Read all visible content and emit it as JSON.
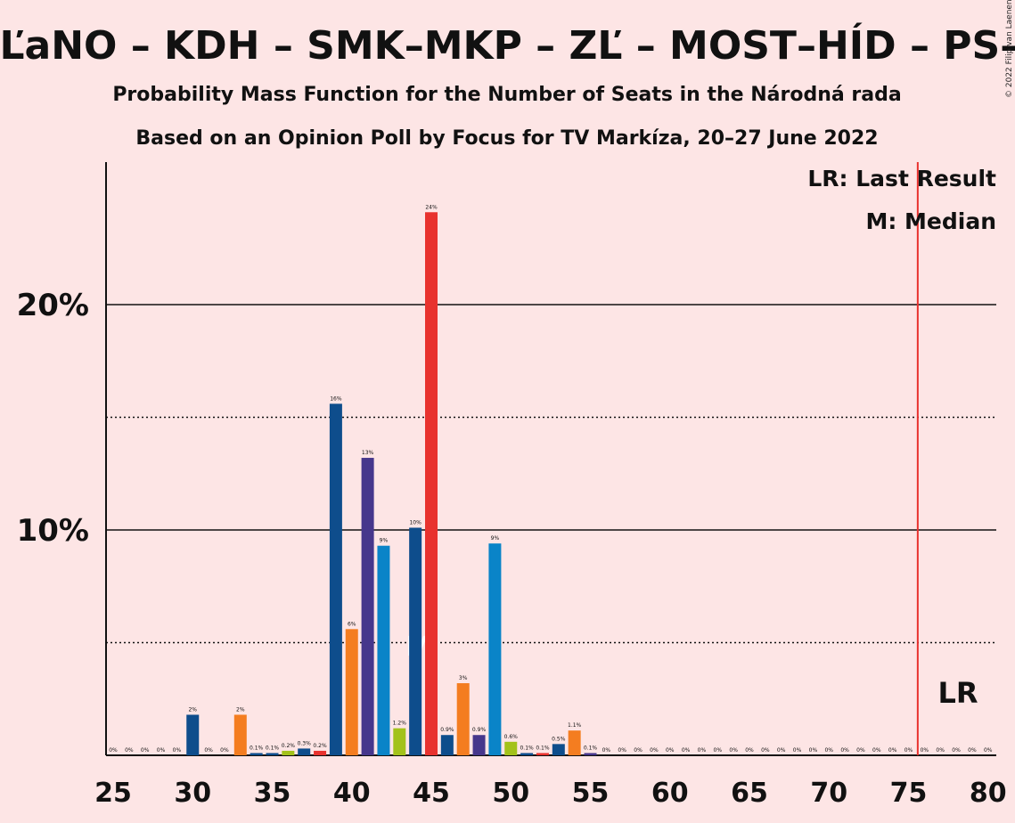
{
  "chart_data": {
    "type": "bar",
    "title": "OĽaNO – KDH – SMK–MKP – ZĽ – MOST–HÍD – PS–S",
    "subtitle": "Probability Mass Function for the Number of Seats in the Národná rada",
    "subtitle2": "Based on an Opinion Poll by Focus for TV Markíza, 20–27 June 2022",
    "copyright": "© 2022 Filip van Laenen",
    "legend": {
      "last_result": "LR: Last Result",
      "median": "M: Median",
      "position": "top-right"
    },
    "xlim": [
      25,
      80
    ],
    "ylim": [
      0,
      26
    ],
    "x_ticks": [
      25,
      30,
      35,
      40,
      45,
      50,
      55,
      60,
      65,
      70,
      75,
      80
    ],
    "y_ticks": [
      {
        "value": 10,
        "label": "10%"
      },
      {
        "value": 20,
        "label": "20%"
      }
    ],
    "dotted_gridlines": [
      5,
      15
    ],
    "solid_gridlines": [
      10,
      20
    ],
    "last_result": {
      "x": 76,
      "label": "LR"
    },
    "median": {
      "x": 44,
      "label": "M"
    },
    "bars": [
      {
        "x": 25,
        "value": 0,
        "label": "0%",
        "color": "#0e4d8c"
      },
      {
        "x": 26,
        "value": 0,
        "label": "0%",
        "color": "#0e4d8c"
      },
      {
        "x": 27,
        "value": 0,
        "label": "0%",
        "color": "#0e4d8c"
      },
      {
        "x": 28,
        "value": 0,
        "label": "0%",
        "color": "#0e4d8c"
      },
      {
        "x": 29,
        "value": 0,
        "label": "0%",
        "color": "#0e4d8c"
      },
      {
        "x": 30,
        "value": 1.8,
        "label": "2%",
        "color": "#0e4d8c"
      },
      {
        "x": 31,
        "value": 0,
        "label": "0%",
        "color": "#0e4d8c"
      },
      {
        "x": 32,
        "value": 0,
        "label": "0%",
        "color": "#0e4d8c"
      },
      {
        "x": 33,
        "value": 1.8,
        "label": "2%",
        "color": "#f47d20"
      },
      {
        "x": 34,
        "value": 0.1,
        "label": "0.1%",
        "color": "#0e4d8c"
      },
      {
        "x": 35,
        "value": 0.1,
        "label": "0.1%",
        "color": "#0e4d8c"
      },
      {
        "x": 36,
        "value": 0.2,
        "label": "0.2%",
        "color": "#a3c21a"
      },
      {
        "x": 37,
        "value": 0.3,
        "label": "0.3%",
        "color": "#0e4d8c"
      },
      {
        "x": 38,
        "value": 0.2,
        "label": "0.2%",
        "color": "#e8322e"
      },
      {
        "x": 39,
        "value": 15.6,
        "label": "16%",
        "color": "#0e4d8c"
      },
      {
        "x": 40,
        "value": 5.6,
        "label": "6%",
        "color": "#f47d20"
      },
      {
        "x": 41,
        "value": 13.2,
        "label": "13%",
        "color": "#46378c"
      },
      {
        "x": 42,
        "value": 9.3,
        "label": "9%",
        "color": "#0a84c8"
      },
      {
        "x": 43,
        "value": 1.2,
        "label": "1.2%",
        "color": "#a3c21a"
      },
      {
        "x": 44,
        "value": 10.1,
        "label": "10%",
        "color": "#0e4d8c"
      },
      {
        "x": 45,
        "value": 24.1,
        "label": "24%",
        "color": "#e8322e"
      },
      {
        "x": 46,
        "value": 0.9,
        "label": "0.9%",
        "color": "#0e4d8c"
      },
      {
        "x": 47,
        "value": 3.2,
        "label": "3%",
        "color": "#f47d20"
      },
      {
        "x": 48,
        "value": 0.9,
        "label": "0.9%",
        "color": "#46378c"
      },
      {
        "x": 49,
        "value": 9.4,
        "label": "9%",
        "color": "#0a84c8"
      },
      {
        "x": 50,
        "value": 0.6,
        "label": "0.6%",
        "color": "#a3c21a"
      },
      {
        "x": 51,
        "value": 0.1,
        "label": "0.1%",
        "color": "#0e4d8c"
      },
      {
        "x": 52,
        "value": 0.1,
        "label": "0.1%",
        "color": "#e8322e"
      },
      {
        "x": 53,
        "value": 0.5,
        "label": "0.5%",
        "color": "#0e4d8c"
      },
      {
        "x": 54,
        "value": 1.1,
        "label": "1.1%",
        "color": "#f47d20"
      },
      {
        "x": 55,
        "value": 0.1,
        "label": "0.1%",
        "color": "#46378c"
      },
      {
        "x": 56,
        "value": 0,
        "label": "0%",
        "color": "#0e4d8c"
      },
      {
        "x": 57,
        "value": 0,
        "label": "0%",
        "color": "#0e4d8c"
      },
      {
        "x": 58,
        "value": 0,
        "label": "0%",
        "color": "#0e4d8c"
      },
      {
        "x": 59,
        "value": 0,
        "label": "0%",
        "color": "#0e4d8c"
      },
      {
        "x": 60,
        "value": 0,
        "label": "0%",
        "color": "#0e4d8c"
      },
      {
        "x": 61,
        "value": 0,
        "label": "0%",
        "color": "#0e4d8c"
      },
      {
        "x": 62,
        "value": 0,
        "label": "0%",
        "color": "#0e4d8c"
      },
      {
        "x": 63,
        "value": 0,
        "label": "0%",
        "color": "#0e4d8c"
      },
      {
        "x": 64,
        "value": 0,
        "label": "0%",
        "color": "#0e4d8c"
      },
      {
        "x": 65,
        "value": 0,
        "label": "0%",
        "color": "#0e4d8c"
      },
      {
        "x": 66,
        "value": 0,
        "label": "0%",
        "color": "#0e4d8c"
      },
      {
        "x": 67,
        "value": 0,
        "label": "0%",
        "color": "#0e4d8c"
      },
      {
        "x": 68,
        "value": 0,
        "label": "0%",
        "color": "#0e4d8c"
      },
      {
        "x": 69,
        "value": 0,
        "label": "0%",
        "color": "#0e4d8c"
      },
      {
        "x": 70,
        "value": 0,
        "label": "0%",
        "color": "#0e4d8c"
      },
      {
        "x": 71,
        "value": 0,
        "label": "0%",
        "color": "#0e4d8c"
      },
      {
        "x": 72,
        "value": 0,
        "label": "0%",
        "color": "#0e4d8c"
      },
      {
        "x": 73,
        "value": 0,
        "label": "0%",
        "color": "#0e4d8c"
      },
      {
        "x": 74,
        "value": 0,
        "label": "0%",
        "color": "#0e4d8c"
      },
      {
        "x": 75,
        "value": 0,
        "label": "0%",
        "color": "#0e4d8c"
      },
      {
        "x": 76,
        "value": 0,
        "label": "0%",
        "color": "#0e4d8c"
      },
      {
        "x": 77,
        "value": 0,
        "label": "0%",
        "color": "#0e4d8c"
      },
      {
        "x": 78,
        "value": 0,
        "label": "0%",
        "color": "#0e4d8c"
      },
      {
        "x": 79,
        "value": 0,
        "label": "0%",
        "color": "#0e4d8c"
      },
      {
        "x": 80,
        "value": 0,
        "label": "0%",
        "color": "#0e4d8c"
      }
    ]
  }
}
